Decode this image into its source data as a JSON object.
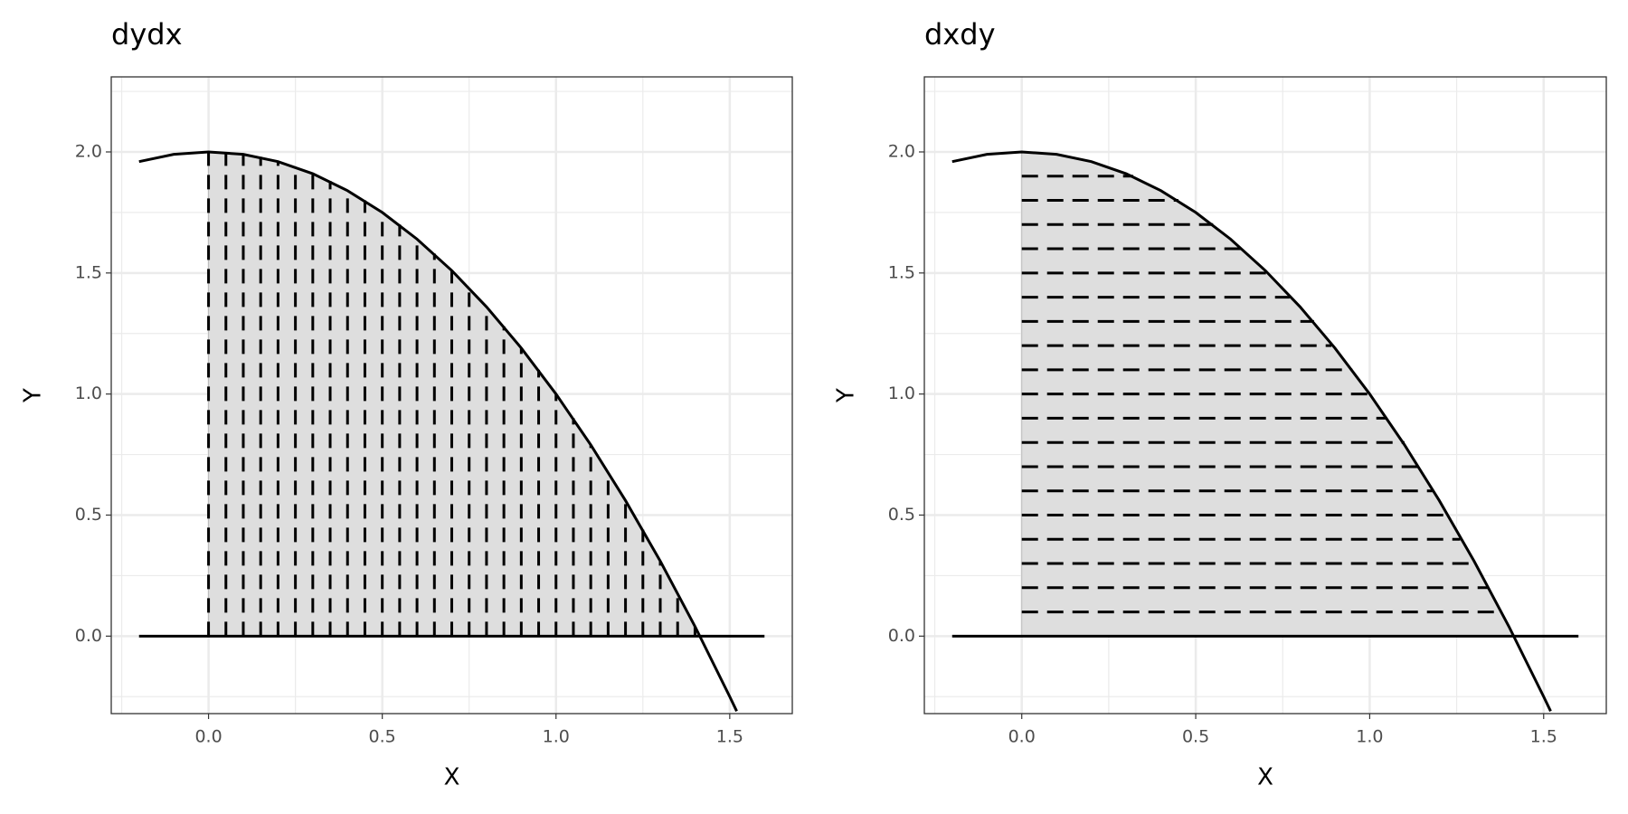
{
  "chart_data": [
    {
      "type": "line",
      "title": "dydx",
      "x_label": "X",
      "y_label": "Y",
      "xlim": [
        -0.28,
        1.68
      ],
      "ylim": [
        -0.32,
        2.31
      ],
      "xticks": [
        {
          "value": 0,
          "label": "0.0"
        },
        {
          "value": 0.5,
          "label": "0.5"
        },
        {
          "value": 1,
          "label": "1.0"
        },
        {
          "value": 1.5,
          "label": "1.5"
        }
      ],
      "yticks": [
        {
          "value": 0,
          "label": "0.0"
        },
        {
          "value": 0.5,
          "label": "0.5"
        },
        {
          "value": 1,
          "label": "1.0"
        },
        {
          "value": 1.5,
          "label": "1.5"
        },
        {
          "value": 2,
          "label": "2.0"
        }
      ],
      "x_minor_grid": [
        -0.25,
        0.25,
        0.75,
        1.25
      ],
      "y_minor_grid": [
        -0.25,
        0.25,
        0.75,
        1.25,
        1.75,
        2.25
      ],
      "grid": true,
      "area": {
        "color": "#dedede",
        "x": [
          0,
          0.1,
          0.2,
          0.3,
          0.4,
          0.5,
          0.6,
          0.7,
          0.8,
          0.9,
          1,
          1.1,
          1.2,
          1.3,
          1.4,
          1.41
        ],
        "ymax": [
          2,
          1.99,
          1.96,
          1.91,
          1.84,
          1.75,
          1.64,
          1.51,
          1.36,
          1.19,
          1,
          0.79,
          0.56,
          0.31,
          0.04,
          0.01
        ],
        "ymin": 0
      },
      "segments": {
        "orientation": "vertical",
        "color": "#000000",
        "from": 0,
        "pos": [
          0,
          0.05,
          0.1,
          0.15,
          0.2,
          0.25,
          0.3,
          0.35,
          0.4,
          0.45,
          0.5,
          0.55,
          0.6,
          0.65,
          0.7,
          0.75,
          0.8,
          0.85,
          0.9,
          0.95,
          1,
          1.05,
          1.1,
          1.15,
          1.2,
          1.25,
          1.3,
          1.35,
          1.4
        ],
        "end": [
          2,
          2,
          1.99,
          1.98,
          1.96,
          1.94,
          1.91,
          1.88,
          1.84,
          1.8,
          1.75,
          1.7,
          1.64,
          1.58,
          1.51,
          1.44,
          1.36,
          1.28,
          1.19,
          1.1,
          1,
          0.9,
          0.79,
          0.68,
          0.56,
          0.44,
          0.31,
          0.18,
          0.04
        ]
      },
      "baseline": {
        "color": "#000000",
        "x": [
          -0.2,
          1.6
        ],
        "y": [
          0,
          0
        ]
      },
      "curve": {
        "color": "#000000",
        "x": [
          -0.2,
          -0.1,
          0,
          0.1,
          0.2,
          0.3,
          0.4,
          0.5,
          0.6,
          0.7,
          0.8,
          0.9,
          1,
          1.1,
          1.2,
          1.3,
          1.4,
          1.5,
          1.52
        ],
        "y": [
          1.96,
          1.99,
          2,
          1.99,
          1.96,
          1.91,
          1.84,
          1.75,
          1.64,
          1.51,
          1.36,
          1.19,
          1,
          0.79,
          0.56,
          0.31,
          0.04,
          -0.25,
          -0.31
        ]
      }
    },
    {
      "type": "line",
      "title": "dxdy",
      "x_label": "X",
      "y_label": "Y",
      "xlim": [
        -0.28,
        1.68
      ],
      "ylim": [
        -0.32,
        2.31
      ],
      "xticks": [
        {
          "value": 0,
          "label": "0.0"
        },
        {
          "value": 0.5,
          "label": "0.5"
        },
        {
          "value": 1,
          "label": "1.0"
        },
        {
          "value": 1.5,
          "label": "1.5"
        }
      ],
      "yticks": [
        {
          "value": 0,
          "label": "0.0"
        },
        {
          "value": 0.5,
          "label": "0.5"
        },
        {
          "value": 1,
          "label": "1.0"
        },
        {
          "value": 1.5,
          "label": "1.5"
        },
        {
          "value": 2,
          "label": "2.0"
        }
      ],
      "x_minor_grid": [
        -0.25,
        0.25,
        0.75,
        1.25
      ],
      "y_minor_grid": [
        -0.25,
        0.25,
        0.75,
        1.25,
        1.75,
        2.25
      ],
      "grid": true,
      "area": {
        "color": "#dedede",
        "x": [
          0,
          0.1,
          0.2,
          0.3,
          0.4,
          0.5,
          0.6,
          0.7,
          0.8,
          0.9,
          1,
          1.1,
          1.2,
          1.3,
          1.4,
          1.41
        ],
        "ymax": [
          2,
          1.99,
          1.96,
          1.91,
          1.84,
          1.75,
          1.64,
          1.51,
          1.36,
          1.19,
          1,
          0.79,
          0.56,
          0.31,
          0.04,
          0.01
        ],
        "ymin": 0
      },
      "segments": {
        "orientation": "horizontal",
        "color": "#000000",
        "from": 0,
        "pos": [
          0.1,
          0.2,
          0.3,
          0.4,
          0.5,
          0.6,
          0.7,
          0.8,
          0.9,
          1,
          1.1,
          1.2,
          1.3,
          1.4,
          1.5,
          1.6,
          1.7,
          1.8,
          1.9
        ],
        "end": [
          1.38,
          1.34,
          1.3,
          1.26,
          1.22,
          1.18,
          1.14,
          1.1,
          1.05,
          1,
          0.95,
          0.89,
          0.84,
          0.77,
          0.71,
          0.63,
          0.55,
          0.45,
          0.32
        ]
      },
      "baseline": {
        "color": "#000000",
        "x": [
          -0.2,
          1.6
        ],
        "y": [
          0,
          0
        ]
      },
      "curve": {
        "color": "#000000",
        "x": [
          -0.2,
          -0.1,
          0,
          0.1,
          0.2,
          0.3,
          0.4,
          0.5,
          0.6,
          0.7,
          0.8,
          0.9,
          1,
          1.1,
          1.2,
          1.3,
          1.4,
          1.5,
          1.52
        ],
        "y": [
          1.96,
          1.99,
          2,
          1.99,
          1.96,
          1.91,
          1.84,
          1.75,
          1.64,
          1.51,
          1.36,
          1.19,
          1,
          0.79,
          0.56,
          0.31,
          0.04,
          -0.25,
          -0.31
        ]
      }
    }
  ]
}
